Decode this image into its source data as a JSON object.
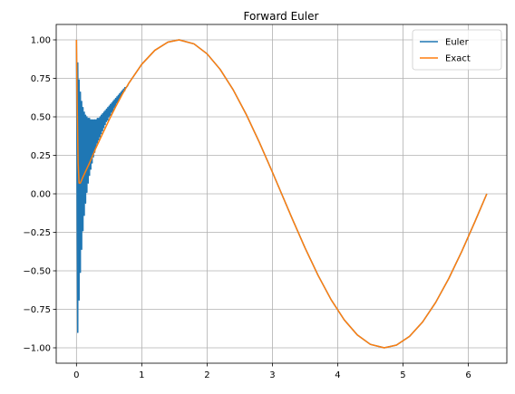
{
  "chart_data": {
    "type": "line",
    "title": "Forward Euler",
    "xlabel": "",
    "ylabel": "",
    "xlim": [
      -0.31,
      6.59
    ],
    "ylim": [
      -1.1,
      1.1
    ],
    "x_ticks": [
      0,
      1,
      2,
      3,
      4,
      5,
      6
    ],
    "x_tick_labels": [
      "0",
      "1",
      "2",
      "3",
      "4",
      "5",
      "6"
    ],
    "y_ticks": [
      -1.0,
      -0.75,
      -0.5,
      -0.25,
      0.0,
      0.25,
      0.5,
      0.75,
      1.0
    ],
    "y_tick_labels": [
      "−1.00",
      "−0.75",
      "−0.50",
      "−0.25",
      "0.00",
      "0.25",
      "0.50",
      "0.75",
      "1.00"
    ],
    "grid": true,
    "legend_position": "top-right",
    "series": [
      {
        "name": "Euler",
        "color": "#1f77b4",
        "x": [
          0.0,
          0.02,
          0.02,
          0.04,
          0.04,
          0.06,
          0.06,
          0.08,
          0.08,
          0.1,
          0.1,
          0.12,
          0.12,
          0.14,
          0.14,
          0.16,
          0.16,
          0.18,
          0.18,
          0.2,
          0.2,
          0.22,
          0.22,
          0.24,
          0.24,
          0.26,
          0.26,
          0.28,
          0.28,
          0.3,
          0.3,
          0.32,
          0.32,
          0.34,
          0.34,
          0.36,
          0.36,
          0.38,
          0.38,
          0.4,
          0.4,
          0.42,
          0.42,
          0.44,
          0.44,
          0.46,
          0.46,
          0.48,
          0.48,
          0.5,
          0.5,
          0.52,
          0.52,
          0.54,
          0.54,
          0.56,
          0.56,
          0.58,
          0.58,
          0.6,
          0.6,
          0.62,
          0.62,
          0.64,
          0.64,
          0.66,
          0.66,
          0.68,
          0.68,
          0.7,
          0.7,
          0.72,
          0.72,
          0.74,
          0.74,
          0.76,
          0.78,
          0.8,
          1.0,
          1.2,
          1.4,
          1.5708,
          1.8,
          2.0,
          2.2,
          2.4,
          2.6,
          2.8,
          3.0,
          3.1416,
          3.3,
          3.5,
          3.7,
          3.9,
          4.1,
          4.3,
          4.5,
          4.7124,
          4.9,
          5.1,
          5.3,
          5.5,
          5.7,
          5.9,
          6.1,
          6.283
        ],
        "y": [
          1.0,
          -0.9,
          0.85,
          -0.69,
          0.74,
          -0.51,
          0.66,
          -0.36,
          0.6,
          -0.24,
          0.56,
          -0.14,
          0.53,
          -0.06,
          0.51,
          0.01,
          0.5,
          0.07,
          0.49,
          0.12,
          0.49,
          0.16,
          0.48,
          0.2,
          0.48,
          0.24,
          0.48,
          0.27,
          0.48,
          0.3,
          0.48,
          0.33,
          0.49,
          0.35,
          0.49,
          0.37,
          0.5,
          0.39,
          0.51,
          0.41,
          0.52,
          0.43,
          0.53,
          0.45,
          0.54,
          0.47,
          0.55,
          0.48,
          0.56,
          0.5,
          0.57,
          0.51,
          0.58,
          0.53,
          0.59,
          0.54,
          0.6,
          0.56,
          0.61,
          0.57,
          0.62,
          0.59,
          0.63,
          0.6,
          0.64,
          0.62,
          0.65,
          0.63,
          0.66,
          0.65,
          0.67,
          0.66,
          0.68,
          0.67,
          0.69,
          0.69,
          0.7,
          0.7174,
          0.8415,
          0.932,
          0.9854,
          1.0,
          0.9738,
          0.9093,
          0.8085,
          0.6755,
          0.5155,
          0.335,
          0.1411,
          0.0,
          -0.1577,
          -0.3508,
          -0.5298,
          -0.6878,
          -0.8183,
          -0.9162,
          -0.9775,
          -1.0,
          -0.9825,
          -0.9258,
          -0.8323,
          -0.7055,
          -0.5507,
          -0.3739,
          -0.1822,
          -0.0
        ]
      },
      {
        "name": "Exact",
        "color": "#ff7f0e",
        "x": [
          0.0,
          0.01,
          0.025,
          0.04,
          0.06,
          0.1,
          0.2,
          0.3,
          0.4,
          0.5,
          0.6,
          0.7,
          0.8,
          1.0,
          1.2,
          1.4,
          1.5708,
          1.8,
          2.0,
          2.2,
          2.4,
          2.6,
          2.8,
          3.0,
          3.1416,
          3.3,
          3.5,
          3.7,
          3.9,
          4.1,
          4.3,
          4.5,
          4.7124,
          4.9,
          5.1,
          5.3,
          5.5,
          5.7,
          5.9,
          6.1,
          6.283
        ],
        "y": [
          1.0,
          0.62,
          0.2,
          0.07,
          0.07,
          0.11,
          0.2,
          0.3,
          0.39,
          0.48,
          0.565,
          0.645,
          0.7174,
          0.8415,
          0.932,
          0.9854,
          1.0,
          0.9738,
          0.9093,
          0.8085,
          0.6755,
          0.5155,
          0.335,
          0.1411,
          0.0,
          -0.1577,
          -0.3508,
          -0.5298,
          -0.6878,
          -0.8183,
          -0.9162,
          -0.9775,
          -1.0,
          -0.9825,
          -0.9258,
          -0.8323,
          -0.7055,
          -0.5507,
          -0.3739,
          -0.1822,
          -0.0
        ]
      }
    ]
  }
}
